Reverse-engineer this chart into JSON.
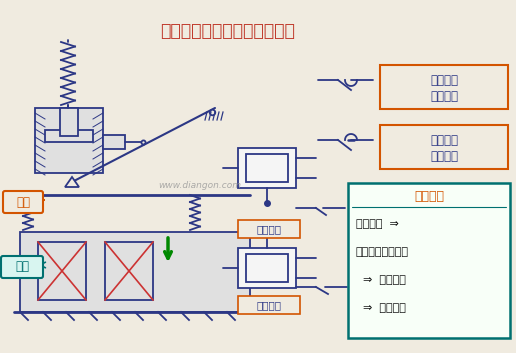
{
  "title": "空气式时间继电器的工作原理",
  "title_color": "#c0392b",
  "bg_color": "#f0ebe0",
  "watermark": "www.diangon.com",
  "label_yatie": "衔铁",
  "label_xianquan": "线圈",
  "label_changbi_mid": "常闭触头",
  "label_changkai_bot": "常开触头",
  "label_changkai2_line1": "常开触头",
  "label_changkai2_line2": "延时闭合",
  "label_changbi2_line1": "常闭触头",
  "label_changbi2_line2": "延时打开",
  "box_title": "动作过程",
  "box_line1": "线圈通电  ⇒",
  "box_line2": "衔铁吸合（向下）",
  "box_line3": "  ⇒  连杆动作",
  "box_line4": "  ⇒  触头动作",
  "dc": "#2c3785",
  "green": "#008800",
  "red_x": "#cc3333",
  "orange": "#d35400",
  "teal": "#007070",
  "white": "#ffffff",
  "cream": "#f0ebe0",
  "light_gray": "#e0e0e0",
  "hatch_gray": "#cccccc"
}
